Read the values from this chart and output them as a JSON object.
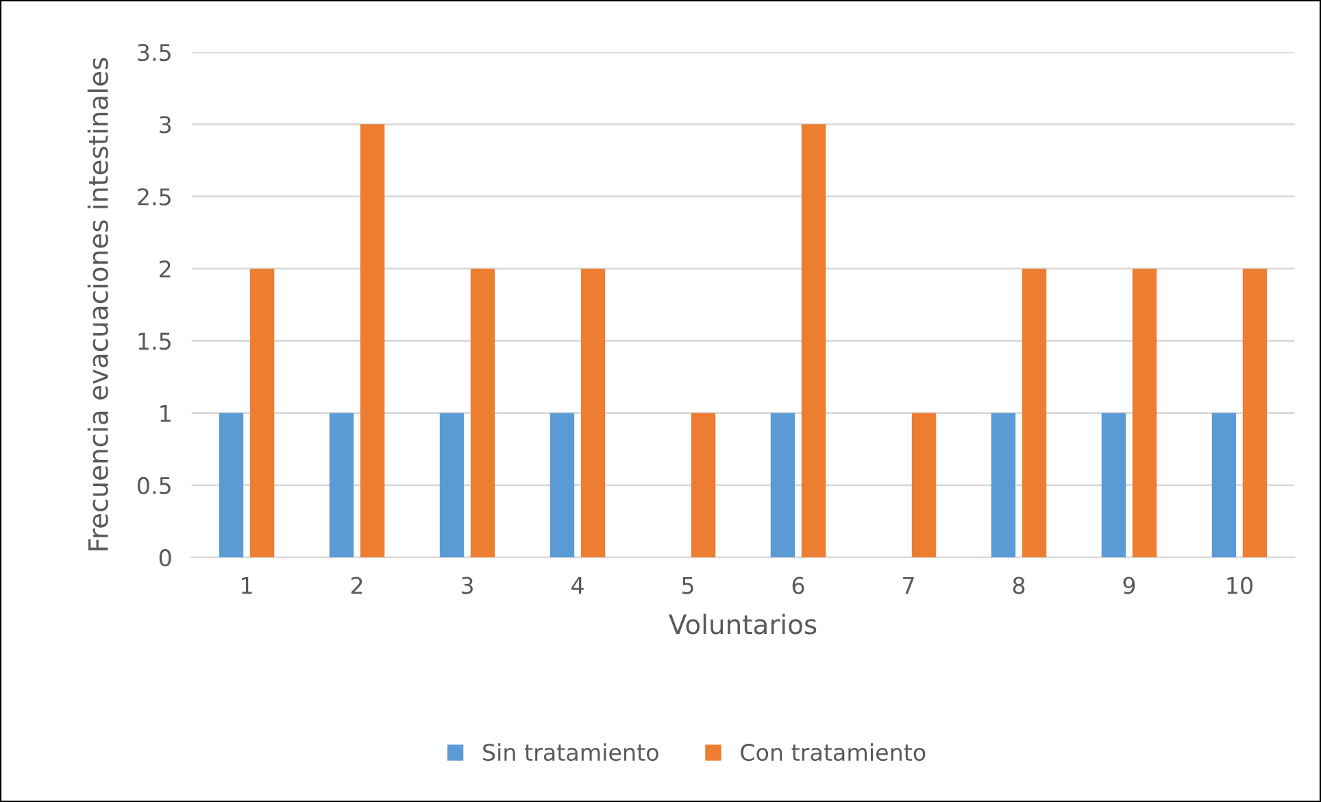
{
  "chart_data": {
    "type": "bar",
    "xlabel": "Voluntarios",
    "ylabel": "Frecuencia evacuaciones intestinales",
    "categories": [
      "1",
      "2",
      "3",
      "4",
      "5",
      "6",
      "7",
      "8",
      "9",
      "10"
    ],
    "series": [
      {
        "name": "Sin tratamiento",
        "color": "#5b9bd5",
        "values": [
          1,
          1,
          1,
          1,
          0,
          1,
          0,
          1,
          1,
          1
        ]
      },
      {
        "name": "Con tratamiento",
        "color": "#ed7d31",
        "values": [
          2,
          3,
          2,
          2,
          1,
          3,
          1,
          2,
          2,
          2
        ]
      }
    ],
    "ylim": [
      0,
      3.5
    ],
    "yticks": [
      0,
      0.5,
      1,
      1.5,
      2,
      2.5,
      3,
      3.5
    ],
    "grid": "y",
    "legend": "bottom"
  }
}
